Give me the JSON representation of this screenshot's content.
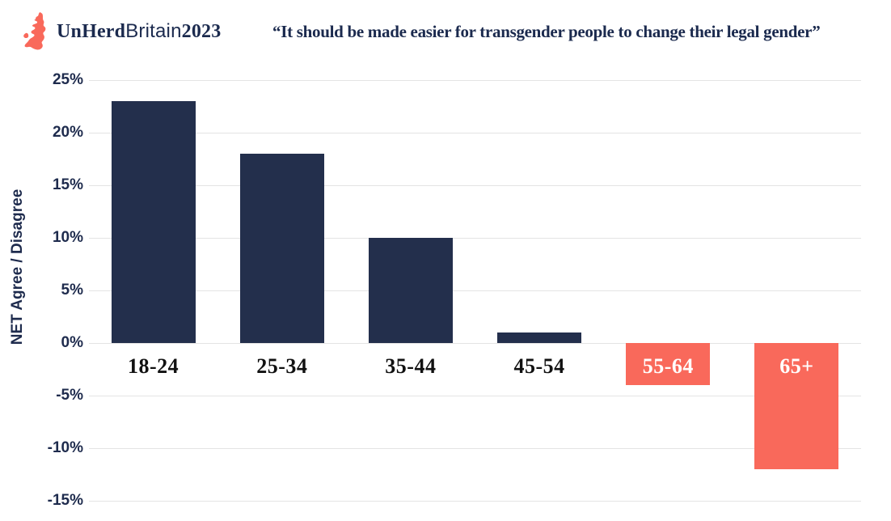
{
  "header": {
    "logo": {
      "icon": "britain-map-icon",
      "brand_bold": "UnHerd",
      "brand_light": "Britain",
      "year": "2023"
    },
    "title": "“It should be made easier for transgender people to change their legal gender”"
  },
  "chart_data": {
    "type": "bar",
    "title": "“It should be made easier for transgender people to change their legal gender”",
    "categories": [
      "18-24",
      "25-34",
      "35-44",
      "45-54",
      "55-64",
      "65+"
    ],
    "values": [
      23,
      18,
      10,
      1,
      -4,
      -12
    ],
    "xlabel": "",
    "ylabel": "NET Agree / Disagree",
    "ylim": [
      -15,
      25
    ],
    "yticks": [
      25,
      20,
      15,
      10,
      5,
      0,
      -5,
      -10,
      -15
    ],
    "ytick_suffix": "%",
    "grid": true,
    "legend": "none",
    "bar_colors": {
      "positive": "#232F4C",
      "negative": "#F9695B"
    },
    "label_colors": {
      "positive": "#111111",
      "negative": "#FFFFFF"
    }
  },
  "colors": {
    "background": "#FFFFFF",
    "navy": "#232F4C",
    "coral": "#F9695B",
    "gridline": "#E4E4E4",
    "text_navy": "#1B2A4E"
  }
}
